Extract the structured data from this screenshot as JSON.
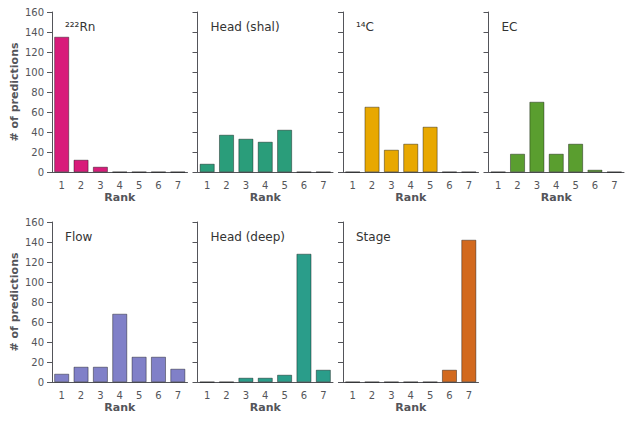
{
  "chart_data": [
    {
      "type": "bar",
      "title": "²²²Rn",
      "categories": [
        "1",
        "2",
        "3",
        "4",
        "5",
        "6",
        "7"
      ],
      "values": [
        135,
        12,
        5,
        0,
        0,
        0,
        0
      ],
      "color": "#D81B7A",
      "xlabel": "Rank",
      "ylabel": "# of predictions",
      "ylim": [
        0,
        160
      ],
      "yticks": [
        0,
        20,
        40,
        60,
        80,
        100,
        120,
        140,
        160
      ],
      "grid": false
    },
    {
      "type": "bar",
      "title": "Head (shal)",
      "categories": [
        "1",
        "2",
        "3",
        "4",
        "5",
        "6",
        "7"
      ],
      "values": [
        8,
        37,
        33,
        30,
        42,
        0,
        0
      ],
      "color": "#2A9D7A",
      "xlabel": "Rank",
      "ylim": [
        0,
        160
      ],
      "yticks": [
        0,
        20,
        40,
        60,
        80,
        100,
        120,
        140,
        160
      ],
      "grid": false,
      "tick_labels": "x"
    },
    {
      "type": "bar",
      "title": "¹⁴C",
      "categories": [
        "1",
        "2",
        "3",
        "4",
        "5",
        "6",
        "7"
      ],
      "values": [
        0,
        65,
        22,
        28,
        45,
        0,
        0
      ],
      "color": "#E8A800",
      "xlabel": "Rank",
      "ylim": [
        0,
        160
      ],
      "yticks": [
        0,
        20,
        40,
        60,
        80,
        100,
        120,
        140,
        160
      ],
      "grid": false,
      "tick_labels": "x"
    },
    {
      "type": "bar",
      "title": "EC",
      "categories": [
        "1",
        "2",
        "3",
        "4",
        "5",
        "6",
        "7"
      ],
      "values": [
        0,
        18,
        70,
        18,
        28,
        2,
        0
      ],
      "color": "#5A9E2F",
      "xlabel": "Rank",
      "ylim": [
        0,
        160
      ],
      "yticks": [
        0,
        20,
        40,
        60,
        80,
        100,
        120,
        140,
        160
      ],
      "grid": false,
      "tick_labels": "x"
    },
    {
      "type": "bar",
      "title": "Flow",
      "categories": [
        "1",
        "2",
        "3",
        "4",
        "5",
        "6",
        "7"
      ],
      "values": [
        8,
        15,
        15,
        68,
        25,
        25,
        13
      ],
      "color": "#8080C8",
      "xlabel": "Rank",
      "ylabel": "# of predictions",
      "ylim": [
        0,
        160
      ],
      "yticks": [
        0,
        20,
        40,
        60,
        80,
        100,
        120,
        140,
        160
      ],
      "grid": false
    },
    {
      "type": "bar",
      "title": "Head (deep)",
      "categories": [
        "1",
        "2",
        "3",
        "4",
        "5",
        "6",
        "7"
      ],
      "values": [
        0,
        0,
        4,
        4,
        7,
        128,
        12
      ],
      "color": "#2A9D8A",
      "xlabel": "Rank",
      "ylim": [
        0,
        160
      ],
      "yticks": [
        0,
        20,
        40,
        60,
        80,
        100,
        120,
        140,
        160
      ],
      "grid": false,
      "tick_labels": "x"
    },
    {
      "type": "bar",
      "title": "Stage",
      "categories": [
        "1",
        "2",
        "3",
        "4",
        "5",
        "6",
        "7"
      ],
      "values": [
        0,
        0,
        0,
        0,
        0,
        12,
        142
      ],
      "color": "#D2691E",
      "xlabel": "Rank",
      "ylim": [
        0,
        160
      ],
      "yticks": [
        0,
        20,
        40,
        60,
        80,
        100,
        120,
        140,
        160
      ],
      "grid": false,
      "tick_labels": "x"
    }
  ]
}
